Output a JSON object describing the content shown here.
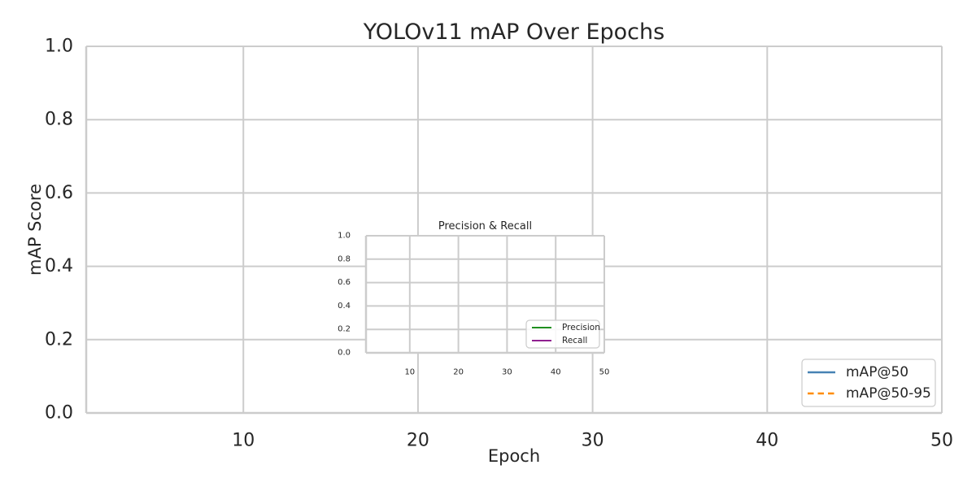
{
  "chart_data": [
    {
      "type": "line",
      "title": "YOLOv11 mAP Over Epochs",
      "xlabel": "Epoch",
      "ylabel": "mAP Score",
      "xlim": [
        1,
        50
      ],
      "ylim": [
        0.0,
        1.0
      ],
      "xticks": [
        10,
        20,
        30,
        40,
        50
      ],
      "yticks": [
        0.0,
        0.2,
        0.4,
        0.6,
        0.8,
        1.0
      ],
      "xtick_labels": [
        "10",
        "20",
        "30",
        "40",
        "50"
      ],
      "ytick_labels": [
        "0.0",
        "0.2",
        "0.4",
        "0.6",
        "0.8",
        "1.0"
      ],
      "grid": true,
      "legend_position": "bottom-right",
      "series": [
        {
          "name": "mAP@50",
          "color": "#4682b4",
          "style": "solid",
          "x": [],
          "y": []
        },
        {
          "name": "mAP@50-95",
          "color": "#ff8c00",
          "style": "dashed",
          "x": [],
          "y": []
        }
      ]
    },
    {
      "type": "line",
      "title": "Precision & Recall",
      "xlabel": "",
      "ylabel": "",
      "xlim": [
        1,
        50
      ],
      "ylim": [
        0.0,
        1.0
      ],
      "xticks": [
        10,
        20,
        30,
        40,
        50
      ],
      "yticks": [
        0.0,
        0.2,
        0.4,
        0.6,
        0.8,
        1.0
      ],
      "xtick_labels": [
        "10",
        "20",
        "30",
        "40",
        "50"
      ],
      "ytick_labels": [
        "0.0",
        "0.2",
        "0.4",
        "0.6",
        "0.8",
        "1.0"
      ],
      "grid": true,
      "legend_position": "bottom-right",
      "series": [
        {
          "name": "Precision",
          "color": "#008000",
          "style": "solid",
          "x": [],
          "y": []
        },
        {
          "name": "Recall",
          "color": "#800080",
          "style": "solid",
          "x": [],
          "y": []
        }
      ]
    }
  ]
}
